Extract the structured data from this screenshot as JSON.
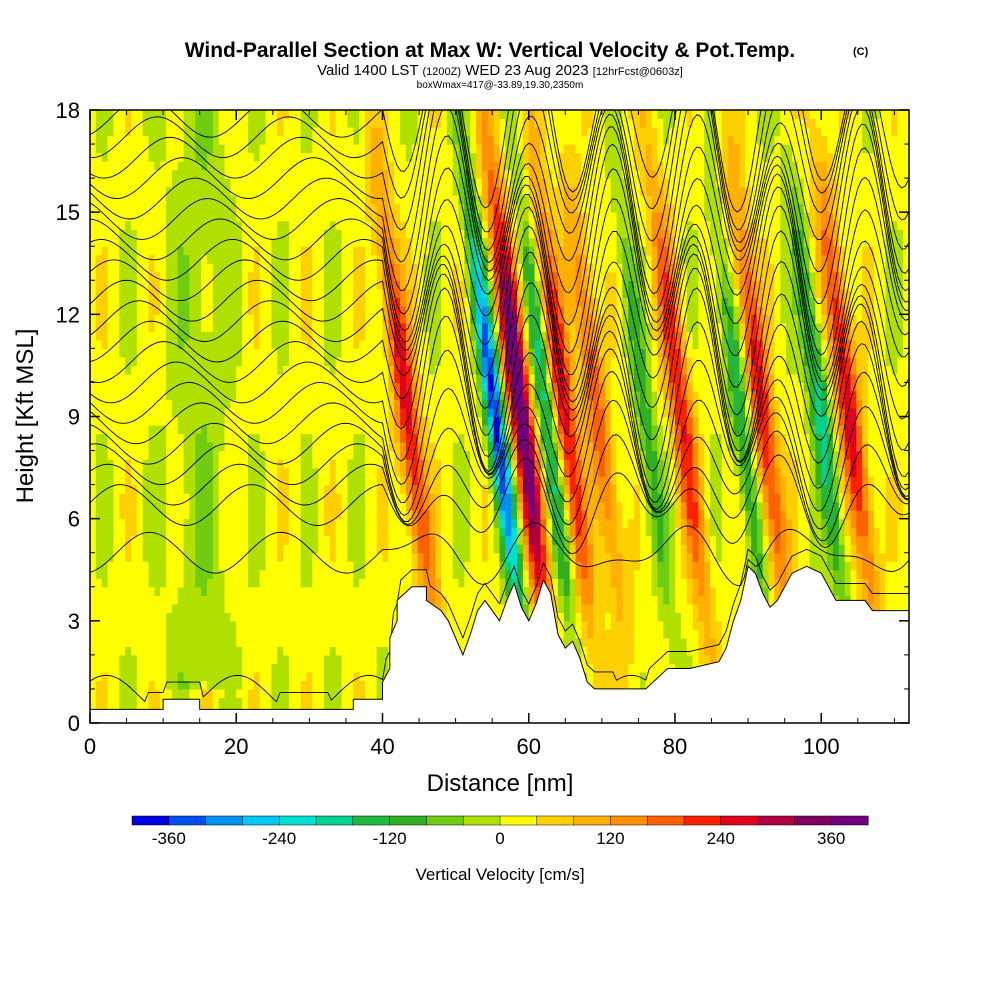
{
  "chart_data": {
    "type": "heatmap",
    "title": "Wind-Parallel Section at Max W: Vertical Velocity & Pot.Temp.",
    "title_suffix": "(C)",
    "subtitle": {
      "valid": "Valid 1400 LST",
      "utc": "(1200Z)",
      "date": "WED 23 Aug 2023",
      "forecast": "[12hrFcst@0603z]"
    },
    "annotation": "boxWmax=417@-33.89,19.30,2350m",
    "xlabel": "Distance [nm]",
    "ylabel": "Height [Kft MSL]",
    "xlim": [
      0,
      112
    ],
    "ylim": [
      0,
      18
    ],
    "x_ticks": [
      0,
      20,
      40,
      60,
      80,
      100
    ],
    "y_ticks": [
      0,
      3,
      6,
      9,
      12,
      15,
      18
    ],
    "colorbar": {
      "label": "Vertical Velocity [cm/s]",
      "min": -400,
      "max": 400,
      "step": 40,
      "tick_labels": [
        "-360",
        "-240",
        "-120",
        "0",
        "120",
        "240",
        "360"
      ],
      "tick_values": [
        -360,
        -240,
        -120,
        0,
        120,
        240,
        360
      ],
      "colors": [
        "#0000e0",
        "#0050f0",
        "#0090f0",
        "#00c8f0",
        "#00e0d0",
        "#00d090",
        "#20b840",
        "#30b020",
        "#70cc10",
        "#b0e000",
        "#ffff00",
        "#ffd000",
        "#ffb000",
        "#ff9000",
        "#ff6000",
        "#ff2000",
        "#e00020",
        "#b00040",
        "#800060",
        "#700080"
      ]
    },
    "terrain_kft": [
      [
        0,
        0.4
      ],
      [
        10,
        0.4
      ],
      [
        10,
        0.7
      ],
      [
        15,
        0.7
      ],
      [
        15,
        0.4
      ],
      [
        20,
        0.4
      ],
      [
        25,
        0.4
      ],
      [
        36,
        0.4
      ],
      [
        36,
        0.7
      ],
      [
        40,
        0.7
      ],
      [
        40,
        1.2
      ],
      [
        41,
        1.6
      ],
      [
        41,
        2.5
      ],
      [
        42,
        3.0
      ],
      [
        42,
        3.6
      ],
      [
        44,
        4.0
      ],
      [
        46,
        4.0
      ],
      [
        46,
        3.6
      ],
      [
        48,
        3.3
      ],
      [
        49,
        3.0
      ],
      [
        50,
        2.5
      ],
      [
        51,
        2.0
      ],
      [
        52,
        2.6
      ],
      [
        53,
        3.3
      ],
      [
        54,
        3.6
      ],
      [
        55,
        3.3
      ],
      [
        56,
        3.0
      ],
      [
        57,
        3.6
      ],
      [
        58,
        4.1
      ],
      [
        59,
        3.4
      ],
      [
        60,
        3.0
      ],
      [
        61,
        3.5
      ],
      [
        62,
        4.2
      ],
      [
        63,
        3.8
      ],
      [
        64,
        2.6
      ],
      [
        65,
        2.2
      ],
      [
        66,
        2.4
      ],
      [
        67,
        1.9
      ],
      [
        68,
        1.2
      ],
      [
        69,
        1.0
      ],
      [
        72,
        1.0
      ],
      [
        76,
        1.0
      ],
      [
        78,
        1.4
      ],
      [
        79,
        1.6
      ],
      [
        82,
        1.6
      ],
      [
        86,
        1.8
      ],
      [
        87,
        2.2
      ],
      [
        88,
        3.0
      ],
      [
        89,
        3.6
      ],
      [
        90,
        4.6
      ],
      [
        91,
        4.4
      ],
      [
        92,
        3.8
      ],
      [
        93,
        3.4
      ],
      [
        94,
        3.6
      ],
      [
        95,
        4.0
      ],
      [
        96,
        4.4
      ],
      [
        98,
        4.6
      ],
      [
        100,
        4.4
      ],
      [
        101,
        4.0
      ],
      [
        102,
        3.6
      ],
      [
        104,
        3.6
      ],
      [
        106,
        3.6
      ],
      [
        107,
        3.3
      ],
      [
        110,
        3.3
      ],
      [
        112,
        3.3
      ]
    ],
    "updrafts": [
      {
        "center_nm": 44.5,
        "peak_cms": 250
      },
      {
        "center_nm": 60.0,
        "peak_cms": 400
      },
      {
        "center_nm": 66.0,
        "peak_cms": 250
      },
      {
        "center_nm": 70.5,
        "peak_cms": 180
      },
      {
        "center_nm": 82.0,
        "peak_cms": 220
      },
      {
        "center_nm": 93.0,
        "peak_cms": 240
      },
      {
        "center_nm": 105.0,
        "peak_cms": 260
      }
    ],
    "downdrafts": [
      {
        "center_nm": 56.5,
        "peak_cms": -390
      },
      {
        "center_nm": 63.5,
        "peak_cms": -200
      },
      {
        "center_nm": 77.0,
        "peak_cms": -120
      },
      {
        "center_nm": 90.0,
        "peak_cms": -160
      },
      {
        "center_nm": 101.0,
        "peak_cms": -200
      }
    ],
    "theta_contours_base_kft": [
      0.8,
      5.0,
      6.4,
      7.0,
      7.6,
      8.2,
      8.8,
      9.4,
      10.0,
      10.6,
      11.2,
      11.8,
      12.4,
      13.0,
      13.6,
      14.2,
      14.8,
      15.4,
      16.0,
      16.6,
      17.2,
      17.8
    ]
  }
}
